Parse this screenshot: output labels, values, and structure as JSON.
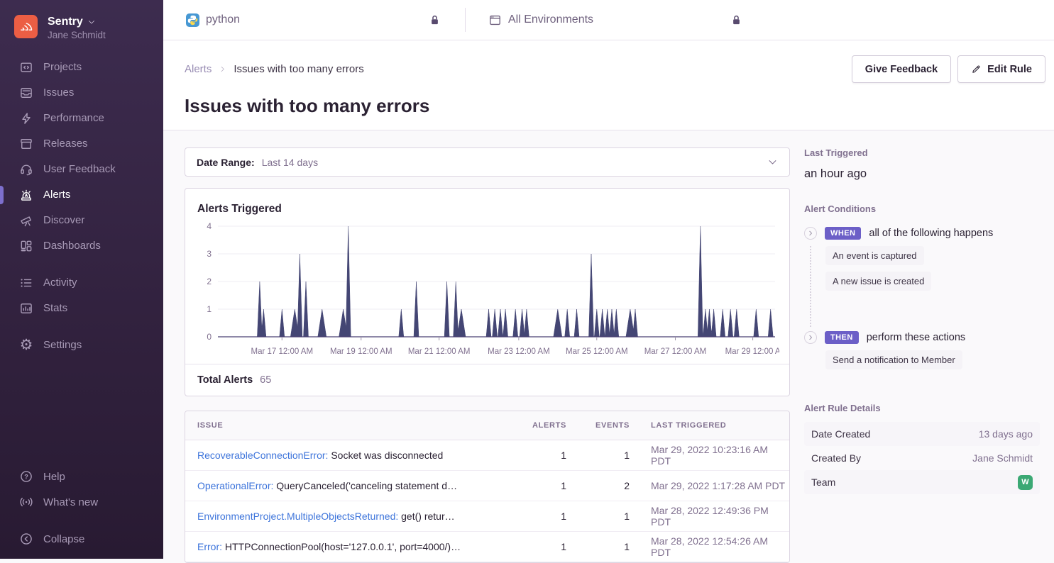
{
  "colors": {
    "accent_purple": "#6c5fc7",
    "sidebar_active_accent": "#7d6fcd",
    "link_blue": "#3d74db",
    "chart_fill": "#444674",
    "team_badge_green": "#3ba874",
    "logo_red": "#ec5e44"
  },
  "icons": {
    "settings_glyph": "⚙",
    "help_glyph": "?",
    "chevron_right_glyph": "›"
  },
  "sidebar": {
    "org_name": "Sentry",
    "user_name": "Jane Schmidt",
    "nav_primary": [
      {
        "id": "projects",
        "label": "Projects"
      },
      {
        "id": "issues",
        "label": "Issues"
      },
      {
        "id": "performance",
        "label": "Performance"
      },
      {
        "id": "releases",
        "label": "Releases"
      },
      {
        "id": "user-feedback",
        "label": "User Feedback"
      },
      {
        "id": "alerts",
        "label": "Alerts"
      },
      {
        "id": "discover",
        "label": "Discover"
      },
      {
        "id": "dashboards",
        "label": "Dashboards"
      }
    ],
    "nav_secondary": [
      {
        "id": "activity",
        "label": "Activity"
      },
      {
        "id": "stats",
        "label": "Stats"
      }
    ],
    "nav_settings": {
      "id": "settings",
      "label": "Settings"
    },
    "nav_footer": [
      {
        "id": "help",
        "label": "Help"
      },
      {
        "id": "whats-new",
        "label": "What's new"
      },
      {
        "id": "collapse",
        "label": "Collapse"
      }
    ]
  },
  "topbar": {
    "project_label": "python",
    "environment_label": "All Environments"
  },
  "page": {
    "breadcrumb_parent": "Alerts",
    "breadcrumb_current": "Issues with too many errors",
    "title": "Issues with too many errors",
    "give_feedback_label": "Give Feedback",
    "edit_rule_label": "Edit Rule"
  },
  "filters": {
    "date_range_label": "Date Range:",
    "date_range_value": "Last 14 days"
  },
  "chart_data": {
    "type": "area",
    "title": "Alerts Triggered",
    "ylabel": "",
    "xlabel": "",
    "ylim": [
      0,
      4
    ],
    "yticks": [
      0,
      1,
      2,
      3,
      4
    ],
    "grid": "horizontal",
    "fill_color": "#444674",
    "xticks": [
      {
        "label": "Mar 17 12:00 AM",
        "x": 0.115
      },
      {
        "label": "Mar 19 12:00 AM",
        "x": 0.257
      },
      {
        "label": "Mar 21 12:00 AM",
        "x": 0.397
      },
      {
        "label": "Mar 23 12:00 AM",
        "x": 0.54
      },
      {
        "label": "Mar 25 12:00 AM",
        "x": 0.68
      },
      {
        "label": "Mar 27 12:00 AM",
        "x": 0.821
      },
      {
        "label": "Mar 29 12:00 A",
        "x": 0.96
      }
    ],
    "points": [
      [
        0.075,
        2
      ],
      [
        0.082,
        1
      ],
      [
        0.115,
        1
      ],
      [
        0.138,
        1,
        1
      ],
      [
        0.147,
        3
      ],
      [
        0.158,
        2
      ],
      [
        0.187,
        1,
        1
      ],
      [
        0.225,
        1,
        1
      ],
      [
        0.234,
        4
      ],
      [
        0.329,
        1
      ],
      [
        0.356,
        2
      ],
      [
        0.411,
        2
      ],
      [
        0.427,
        2
      ],
      [
        0.437,
        1,
        1
      ],
      [
        0.486,
        1
      ],
      [
        0.497,
        1
      ],
      [
        0.507,
        1
      ],
      [
        0.516,
        1
      ],
      [
        0.534,
        1
      ],
      [
        0.546,
        1
      ],
      [
        0.554,
        1
      ],
      [
        0.61,
        1,
        1
      ],
      [
        0.627,
        1
      ],
      [
        0.644,
        1
      ],
      [
        0.67,
        3
      ],
      [
        0.68,
        1
      ],
      [
        0.69,
        1
      ],
      [
        0.699,
        1
      ],
      [
        0.707,
        1
      ],
      [
        0.715,
        1
      ],
      [
        0.74,
        1,
        1
      ],
      [
        0.749,
        1
      ],
      [
        0.866,
        4
      ],
      [
        0.875,
        1
      ],
      [
        0.882,
        1
      ],
      [
        0.89,
        1
      ],
      [
        0.906,
        1
      ],
      [
        0.92,
        1
      ],
      [
        0.931,
        1
      ],
      [
        0.966,
        1
      ],
      [
        0.992,
        1
      ]
    ],
    "total_label": "Total Alerts",
    "total_value": "65"
  },
  "issues_table": {
    "columns": [
      "ISSUE",
      "ALERTS",
      "EVENTS",
      "LAST TRIGGERED"
    ],
    "rows": [
      {
        "name": "RecoverableConnectionError:",
        "desc": " Socket was disconnected",
        "alerts": "1",
        "events": "1",
        "last_triggered": "Mar 29, 2022 10:23:16 AM PDT"
      },
      {
        "name": "OperationalError:",
        "desc": " QueryCanceled('canceling statement d…",
        "alerts": "1",
        "events": "2",
        "last_triggered": "Mar 29, 2022 1:17:28 AM PDT"
      },
      {
        "name": "EnvironmentProject.MultipleObjectsReturned:",
        "desc": " get() retur…",
        "alerts": "1",
        "events": "1",
        "last_triggered": "Mar 28, 2022 12:49:36 PM PDT"
      },
      {
        "name": "Error:",
        "desc": " HTTPConnectionPool(host='127.0.0.1', port=4000/)…",
        "alerts": "1",
        "events": "1",
        "last_triggered": "Mar 28, 2022 12:54:26 AM PDT"
      }
    ]
  },
  "panel": {
    "last_triggered_heading": "Last Triggered",
    "last_triggered_value": "an hour ago",
    "conditions_heading": "Alert Conditions",
    "when_badge": "WHEN",
    "when_text": "all of the following happens",
    "when_items": [
      "An event is captured",
      "A new issue is created"
    ],
    "then_badge": "THEN",
    "then_text": "perform these actions",
    "then_items": [
      "Send a notification to Member"
    ],
    "rule_details_heading": "Alert Rule Details",
    "detail_rows": [
      {
        "label": "Date Created",
        "value": "13 days ago"
      },
      {
        "label": "Created By",
        "value": "Jane Schmidt"
      },
      {
        "label": "Team",
        "value": "W"
      }
    ]
  }
}
